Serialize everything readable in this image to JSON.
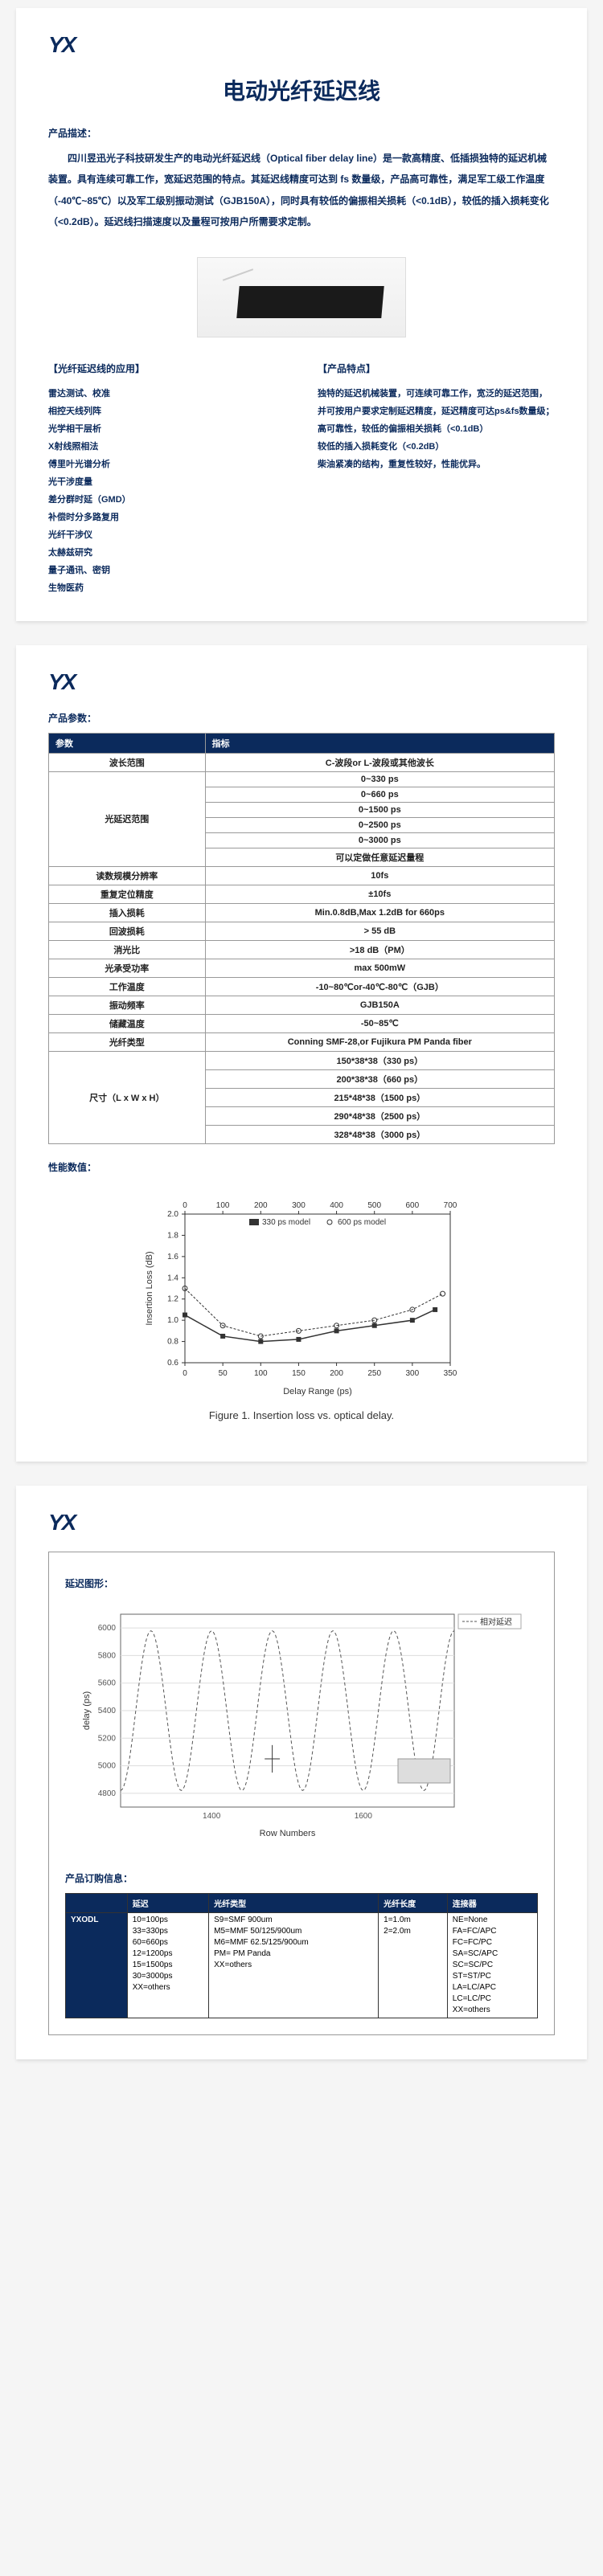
{
  "logo": "YX",
  "title": "电动光纤延迟线",
  "intro_label": "产品描述：",
  "intro": "四川昱迅光子科技研发生产的电动光纤延迟线（Optical fiber delay line）是一款高精度、低插损独特的延迟机械装置。具有连续可靠工作，宽延迟范围的特点。其延迟线精度可达到 fs 数量级，产品高可靠性，满足军工级工作温度（-40℃~85℃）以及军工级别振动测试（GJB150A），同时具有较低的偏振相关损耗（<0.1dB），较低的插入损耗变化（<0.2dB）。延迟线扫描速度以及量程可按用户所需要求定制。",
  "applications": {
    "title": "【光纤延迟线的应用】",
    "items": [
      "雷达测试、校准",
      "相控天线列阵",
      "光学相干层析",
      "X射线照相法",
      "傅里叶光谱分析",
      "光干涉度量",
      "差分群时延（GMD）",
      "补偿时分多路复用",
      "光纤干涉仪",
      "太赫兹研究",
      "量子通讯、密钥",
      "生物医药"
    ]
  },
  "features": {
    "title": "【产品特点】",
    "items": [
      "独特的延迟机械装置，可连续可靠工作，宽泛的延迟范围，并可按用户要求定制延迟精度，延迟精度可达ps&fs数量级；",
      "高可靠性，较低的偏振相关损耗（<0.1dB）",
      "较低的插入损耗变化（<0.2dB）",
      "柴油紧凑的结构，重复性较好，性能优异。"
    ]
  },
  "params_label": "产品参数：",
  "params_header": [
    "参数",
    "指标"
  ],
  "params": [
    {
      "k": "波长范围",
      "v": [
        "C-波段or L-波段或其他波长"
      ]
    },
    {
      "k": "光延迟范围",
      "v": [
        "0~330  ps",
        "0~660  ps",
        "0~1500 ps",
        "0~2500 ps",
        "0~3000 ps",
        "可以定做任意延迟量程"
      ]
    },
    {
      "k": "读数规模分辨率",
      "v": [
        "10fs"
      ]
    },
    {
      "k": "重复定位精度",
      "v": [
        "±10fs"
      ]
    },
    {
      "k": "插入损耗",
      "v": [
        "Min.0.8dB,Max 1.2dB for 660ps"
      ]
    },
    {
      "k": "回波损耗",
      "v": [
        "> 55 dB"
      ]
    },
    {
      "k": "消光比",
      "v": [
        ">18 dB（PM）"
      ]
    },
    {
      "k": "光承受功率",
      "v": [
        "max 500mW"
      ]
    },
    {
      "k": "工作温度",
      "v": [
        "-10~80℃or-40℃-80℃（GJB）"
      ]
    },
    {
      "k": "振动频率",
      "v": [
        "GJB150A"
      ]
    },
    {
      "k": "储藏温度",
      "v": [
        "-50~85℃"
      ]
    },
    {
      "k": "光纤类型",
      "v": [
        "Conning SMF-28,or Fujikura PM Panda fiber"
      ]
    },
    {
      "k": "尺寸（L x W x H）",
      "v": [
        "150*38*38（330  ps）",
        "200*38*38（660  ps）",
        "215*48*38（1500 ps）",
        "290*48*38（2500 ps）",
        "328*48*38（3000 ps）"
      ]
    }
  ],
  "perf_label": "性能数值：",
  "chart1": {
    "caption": "Figure 1. Insertion loss vs. optical delay.",
    "xlabel": "Delay Range (ps)",
    "ylabel": "Insertion Loss (dB)",
    "legend": [
      "330 ps model",
      "600 ps model"
    ],
    "x_bottom_ticks": [
      0,
      50,
      100,
      150,
      200,
      250,
      300,
      350
    ],
    "x_top_ticks": [
      0,
      100,
      200,
      300,
      400,
      500,
      600,
      700
    ],
    "y_ticks": [
      0.6,
      0.8,
      1.0,
      1.2,
      1.4,
      1.6,
      1.8,
      2.0
    ],
    "series330": [
      [
        0,
        1.05
      ],
      [
        50,
        0.85
      ],
      [
        100,
        0.8
      ],
      [
        150,
        0.82
      ],
      [
        200,
        0.9
      ],
      [
        250,
        0.95
      ],
      [
        300,
        1.0
      ],
      [
        330,
        1.1
      ]
    ],
    "series600": [
      [
        0,
        1.3
      ],
      [
        100,
        0.95
      ],
      [
        200,
        0.85
      ],
      [
        300,
        0.9
      ],
      [
        400,
        0.95
      ],
      [
        500,
        1.0
      ],
      [
        600,
        1.1
      ],
      [
        680,
        1.25
      ]
    ],
    "bg": "#ffffff",
    "grid": "#cccccc",
    "axis": "#333333",
    "color330": "#333333",
    "color600": "#333333"
  },
  "delay_label": "延迟图形：",
  "chart2": {
    "legend": "相对延迟",
    "xlabel": "Row Numbers",
    "ylabel": "delay (ps)",
    "x_ticks": [
      1400,
      1600
    ],
    "y_ticks": [
      4800,
      5000,
      5200,
      5400,
      5600,
      5800,
      6000
    ],
    "xlim": [
      1280,
      1720
    ],
    "ylim": [
      4700,
      6100
    ],
    "bg": "#ffffff",
    "grid": "#dddddd",
    "axis": "#666666",
    "line": "#555555"
  },
  "order_label": "产品订购信息：",
  "order_header": [
    "延迟",
    "光纤类型",
    "光纤长度",
    "连接器"
  ],
  "order_lead": "YXODL",
  "order": {
    "delay": [
      "10=100ps",
      "33=330ps",
      "60=660ps",
      "12=1200ps",
      "15=1500ps",
      "30=3000ps",
      "XX=others"
    ],
    "fiber": [
      "S9=SMF 900um",
      "M5=MMF 50/125/900um",
      "M6=MMF 62.5/125/900um",
      "PM= PM Panda",
      "XX=others"
    ],
    "length": [
      "1=1.0m",
      "2=2.0m"
    ],
    "conn": [
      "NE=None",
      "FA=FC/APC",
      "FC=FC/PC",
      "SA=SC/APC",
      "SC=SC/PC",
      "ST=ST/PC",
      "LA=LC/APC",
      "LC=LC/PC",
      "XX=others"
    ]
  }
}
